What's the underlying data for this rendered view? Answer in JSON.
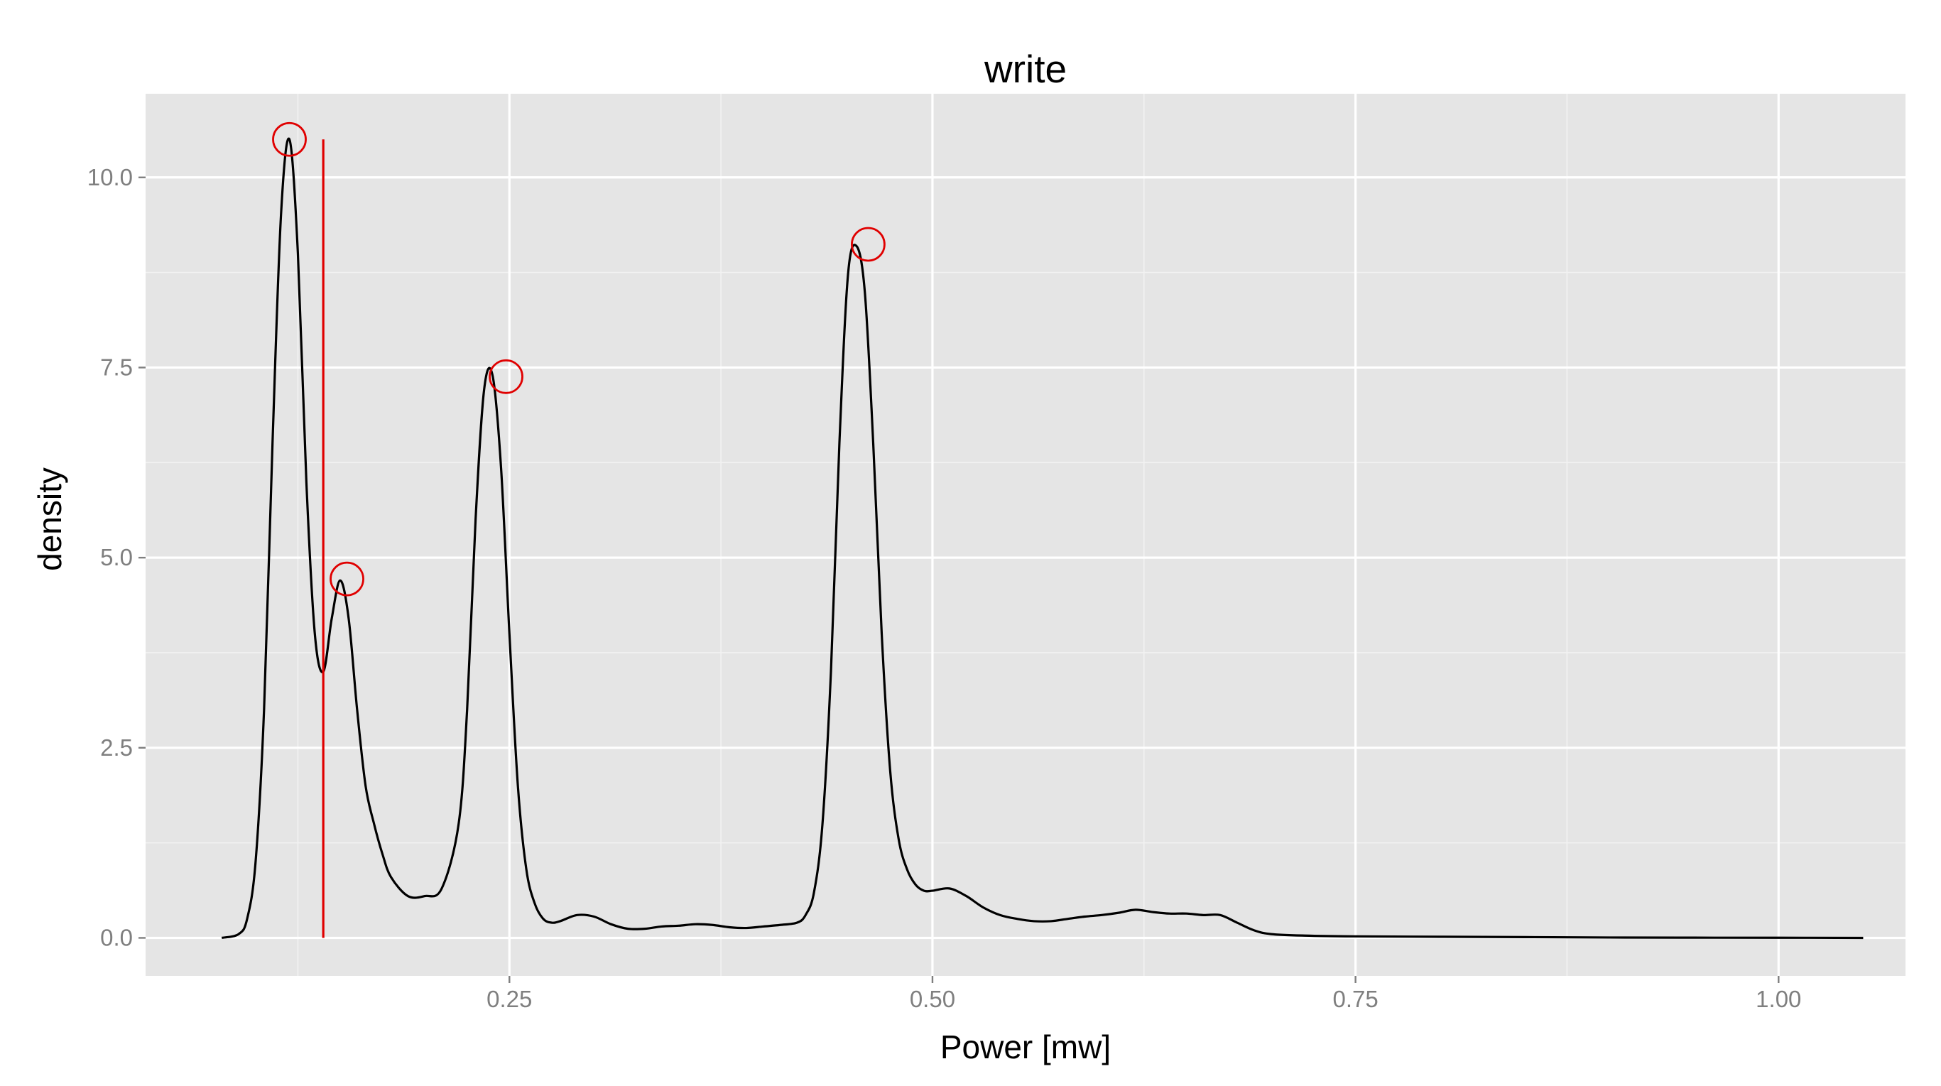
{
  "chart_data": {
    "type": "line",
    "title": "write",
    "xlabel": "Power [mw]",
    "ylabel": "density",
    "xlim": [
      0.035,
      1.075
    ],
    "ylim": [
      -0.5,
      11.1
    ],
    "x_ticks": [
      0.25,
      0.5,
      0.75,
      1.0
    ],
    "x_tick_labels": [
      "0.25",
      "0.50",
      "0.75",
      "1.00"
    ],
    "y_ticks": [
      0.0,
      2.5,
      5.0,
      7.5,
      10.0
    ],
    "y_tick_labels": [
      "0.0",
      "2.5",
      "5.0",
      "7.5",
      "10.0"
    ],
    "grid": true,
    "legend": "none",
    "colors": {
      "panel_background": "#E5E5E5",
      "grid": "#FFFFFF",
      "line": "#000000",
      "annotation": "#E00000"
    },
    "series": [
      {
        "x": [
          0.08,
          0.09,
          0.095,
          0.1,
          0.105,
          0.11,
          0.115,
          0.12,
          0.125,
          0.13,
          0.135,
          0.14,
          0.145,
          0.15,
          0.155,
          0.16,
          0.165,
          0.17,
          0.175,
          0.18,
          0.19,
          0.2,
          0.21,
          0.22,
          0.225,
          0.23,
          0.235,
          0.24,
          0.245,
          0.25,
          0.255,
          0.26,
          0.265,
          0.27,
          0.275,
          0.28,
          0.29,
          0.3,
          0.31,
          0.32,
          0.33,
          0.34,
          0.35,
          0.36,
          0.37,
          0.38,
          0.39,
          0.4,
          0.41,
          0.42,
          0.425,
          0.43,
          0.435,
          0.44,
          0.445,
          0.45,
          0.455,
          0.46,
          0.465,
          0.47,
          0.475,
          0.48,
          0.485,
          0.49,
          0.495,
          0.5,
          0.51,
          0.52,
          0.53,
          0.54,
          0.55,
          0.56,
          0.57,
          0.58,
          0.59,
          0.6,
          0.61,
          0.62,
          0.63,
          0.64,
          0.65,
          0.66,
          0.67,
          0.68,
          0.69,
          0.7,
          0.72,
          0.75,
          0.8,
          0.85,
          0.9,
          0.95,
          1.0,
          1.05
        ],
        "values": [
          0.0,
          0.05,
          0.25,
          1.0,
          3.0,
          6.5,
          9.5,
          10.5,
          9.0,
          6.0,
          4.0,
          3.5,
          4.2,
          4.7,
          4.2,
          3.0,
          2.0,
          1.5,
          1.1,
          0.8,
          0.55,
          0.55,
          0.65,
          1.5,
          3.0,
          5.5,
          7.2,
          7.4,
          6.2,
          4.0,
          2.0,
          0.9,
          0.45,
          0.25,
          0.2,
          0.22,
          0.3,
          0.28,
          0.18,
          0.12,
          0.12,
          0.15,
          0.16,
          0.18,
          0.17,
          0.14,
          0.13,
          0.15,
          0.17,
          0.2,
          0.3,
          0.6,
          1.5,
          3.5,
          6.5,
          8.7,
          9.1,
          8.5,
          6.5,
          4.0,
          2.2,
          1.3,
          0.9,
          0.7,
          0.62,
          0.62,
          0.65,
          0.55,
          0.4,
          0.3,
          0.25,
          0.22,
          0.22,
          0.25,
          0.28,
          0.3,
          0.33,
          0.37,
          0.34,
          0.32,
          0.32,
          0.3,
          0.3,
          0.2,
          0.1,
          0.05,
          0.03,
          0.02,
          0.015,
          0.01,
          0.005,
          0.003,
          0.002,
          0.0
        ]
      }
    ],
    "annotations": {
      "peaks": [
        {
          "x": 0.12,
          "y": 10.5
        },
        {
          "x": 0.154,
          "y": 4.72
        },
        {
          "x": 0.248,
          "y": 7.38
        },
        {
          "x": 0.462,
          "y": 9.12
        }
      ],
      "vline": {
        "x": 0.14,
        "y_from": 0.0,
        "y_to": 10.5
      }
    }
  }
}
